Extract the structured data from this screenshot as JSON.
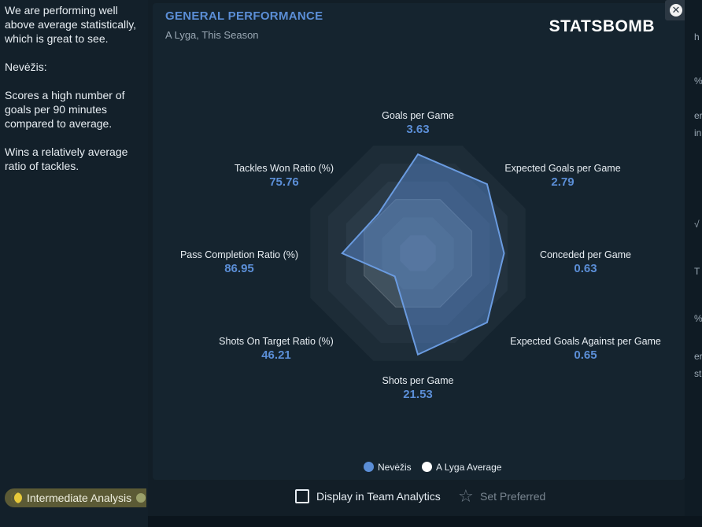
{
  "left_panel": {
    "paragraphs": [
      "We are performing well above average statistically, which is great to see.",
      "Nevėžis:",
      "Scores a high number of goals per 90 minutes compared to average.",
      "Wins a relatively average ratio of tackles."
    ],
    "analysis_label": "Intermediate Analysis"
  },
  "card": {
    "title": "GENERAL PERFORMANCE",
    "subtitle": "A Lyga, This Season",
    "logo": "STATSBOMB"
  },
  "chart_data": {
    "type": "radar",
    "axes": [
      {
        "name": "Goals per Game",
        "value": "3.63",
        "team_level": 0.85
      },
      {
        "name": "Expected Goals per Game",
        "value": "2.79",
        "team_level": 0.84
      },
      {
        "name": "Conceded per Game",
        "value": "0.63",
        "team_level": 0.74
      },
      {
        "name": "Expected Goals Against per Game",
        "value": "0.65",
        "team_level": 0.84
      },
      {
        "name": "Shots per Game",
        "value": "21.53",
        "team_level": 0.87
      },
      {
        "name": "Shots On Target Ratio (%)",
        "value": "46.21",
        "team_level": 0.28
      },
      {
        "name": "Pass Completion Ratio (%)",
        "value": "86.95",
        "team_level": 0.65
      },
      {
        "name": "Tackles Won Ratio (%)",
        "value": "75.76",
        "team_level": 0.48
      }
    ],
    "average_level": 0.5,
    "legend": [
      "Nevėžis",
      "A Lyga Average"
    ],
    "colors": {
      "team": "#5b8ed6",
      "average": "#ffffff"
    }
  },
  "footer": {
    "display_label": "Display in Team Analytics",
    "set_preferred": "Set Preferred"
  },
  "right_strip": [
    "h",
    "%",
    "er",
    "in",
    "√",
    "T",
    "%",
    "er",
    "st"
  ]
}
